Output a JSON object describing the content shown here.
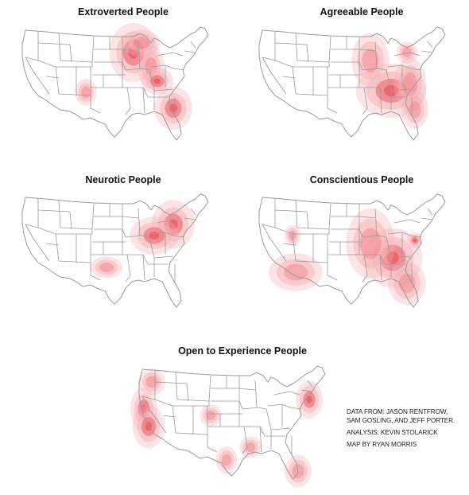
{
  "maps": [
    {
      "title": "Extroverted People"
    },
    {
      "title": "Agreeable People"
    },
    {
      "title": "Neurotic People"
    },
    {
      "title": "Conscientious People"
    },
    {
      "title": "Open to Experience People"
    }
  ],
  "credits": {
    "line1": "DATA FROM: JASON RENTFROW,",
    "line2": "SAM GOSLING, AND JEFF PORTER.",
    "line3": "ANALYSIS: KEVIN STOLARICK",
    "line4": "MAP BY RYAN MORRIS"
  },
  "colors": {
    "hotspot": "#e8454f",
    "halo": "#f6b3b7",
    "borders": "#9a9a9a"
  }
}
